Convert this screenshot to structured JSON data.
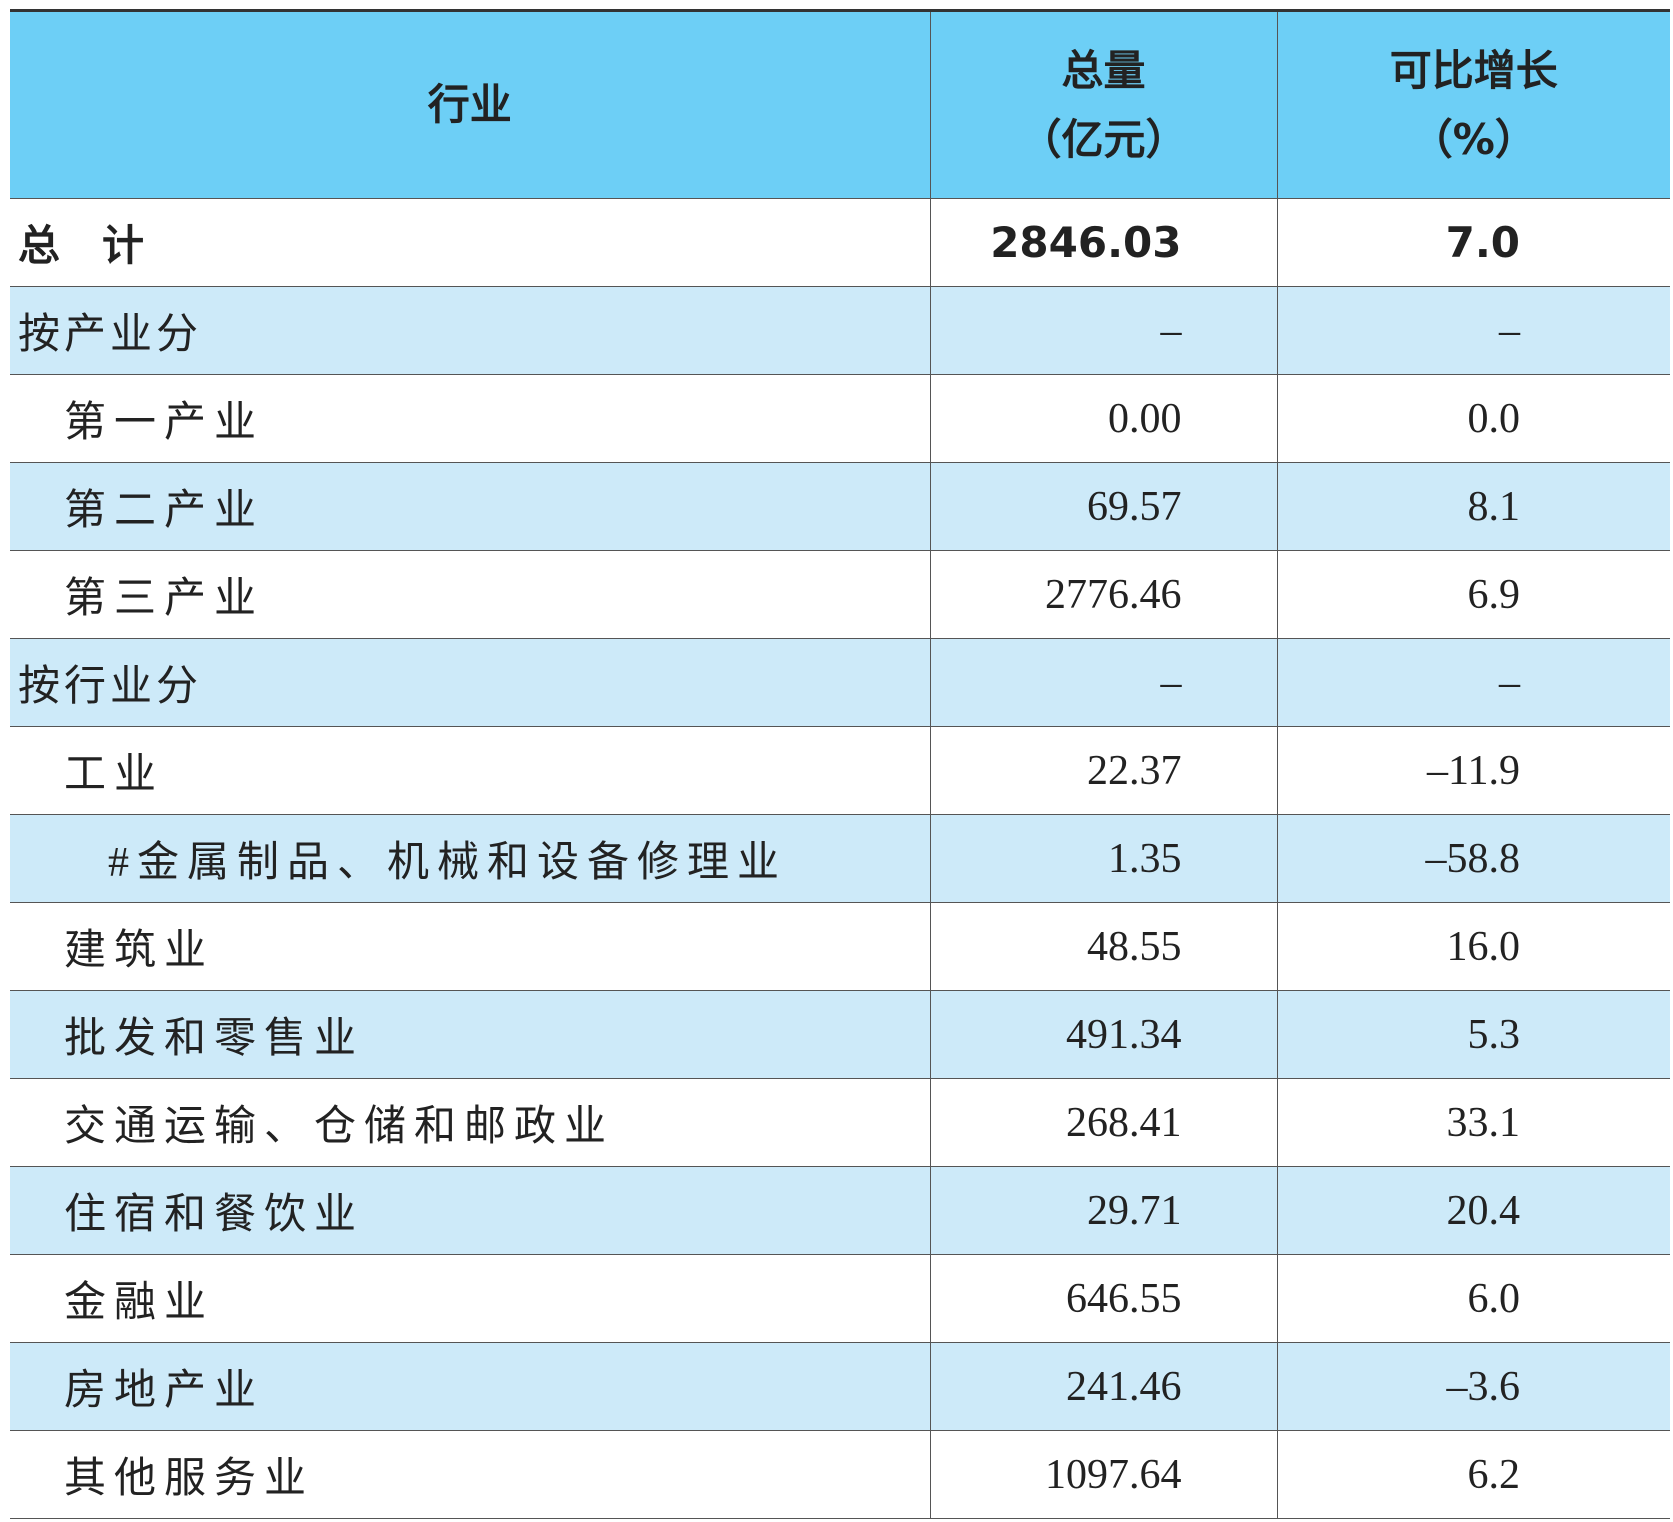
{
  "table": {
    "header": [
      "行业",
      "总量",
      "（亿元）",
      "可比增长",
      "（%）"
    ],
    "rows": [
      [
        "总　计",
        "2846.03",
        "7.0"
      ],
      [
        "按产业分",
        "–",
        "–"
      ],
      [
        "第一产业",
        "0.00",
        "0.0"
      ],
      [
        "第二产业",
        "69.57",
        "8.1"
      ],
      [
        "第三产业",
        "2776.46",
        "6.9"
      ],
      [
        "按行业分",
        "–",
        "–"
      ],
      [
        "工业",
        "22.37",
        "–11.9"
      ],
      [
        "#金属制品、机械和设备修理业",
        "1.35",
        "–58.8"
      ],
      [
        "建筑业",
        "48.55",
        "16.0"
      ],
      [
        "批发和零售业",
        "491.34",
        "5.3"
      ],
      [
        "交通运输、仓储和邮政业",
        "268.41",
        "33.1"
      ],
      [
        "住宿和餐饮业",
        "29.71",
        "20.4"
      ],
      [
        "金融业",
        "646.55",
        "6.0"
      ],
      [
        "房地产业",
        "241.46",
        "–3.6"
      ],
      [
        "其他服务业",
        "1097.64",
        "6.2"
      ]
    ]
  }
}
